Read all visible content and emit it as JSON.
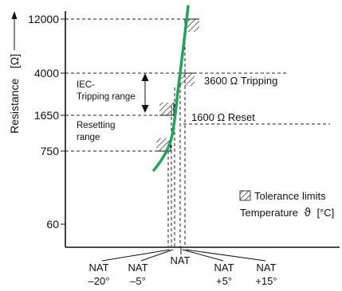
{
  "y_axis": {
    "title": "Resistance",
    "unit": "[Ω]",
    "ticks": [
      "12000",
      "4000",
      "1650",
      "750",
      "60"
    ]
  },
  "annotations": {
    "tripping_resistance": "3600 Ω Tripping",
    "reset_resistance": "1600 Ω Reset",
    "iec_range_line1": "IEC-",
    "iec_range_line2": "Tripping range",
    "resetting_line1": "Resetting",
    "resetting_line2": "range"
  },
  "legend": {
    "tolerance": "Tolerance limits",
    "temperature_label": "Temperature",
    "temperature_symbol": "ϑ",
    "temperature_unit": "[°C]"
  },
  "x_labels": [
    {
      "top": "NAT",
      "bottom": "–20°"
    },
    {
      "top": "NAT",
      "bottom": "–5°"
    },
    {
      "top": "NAT",
      "bottom": ""
    },
    {
      "top": "NAT",
      "bottom": "+5°"
    },
    {
      "top": "NAT",
      "bottom": "+15°"
    }
  ],
  "colors": {
    "curve": "#1fa55a",
    "lines": "#111111"
  }
}
